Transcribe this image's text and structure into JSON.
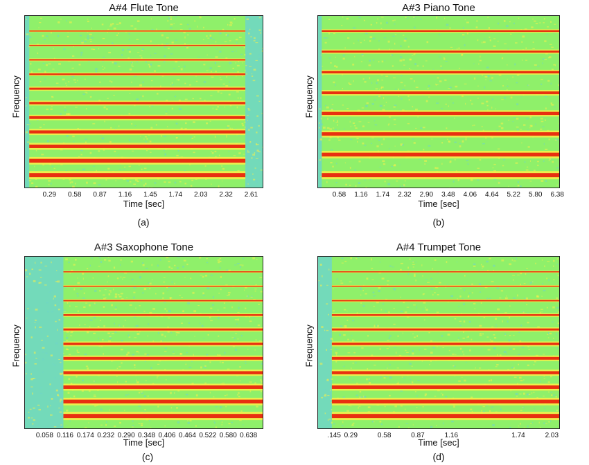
{
  "chart_data": [
    {
      "type": "heatmap",
      "title": "A#4 Flute Tone",
      "xlabel": "Time [sec]",
      "ylabel": "Frequency",
      "xticks": [
        "0.29",
        "0.58",
        "0.87",
        "1.16",
        "1.45",
        "1.74",
        "2.03",
        "2.32",
        "2.61"
      ],
      "xlim": [
        0,
        2.75
      ],
      "caption": "(a)",
      "harmonics": 11,
      "onset": 0.05,
      "offset": 2.55,
      "colors": {
        "background": "#8ff06a",
        "harmonic": "#e83010",
        "noise": "#f5f04a",
        "quiet": "#6fd6c8"
      }
    },
    {
      "type": "heatmap",
      "title": "A#3 Piano Tone",
      "xlabel": "Time [sec]",
      "ylabel": "Frequency",
      "xticks": [
        "0.58",
        "1.16",
        "1.74",
        "2.32",
        "2.90",
        "3.48",
        "4.06",
        "4.64",
        "5.22",
        "5.80",
        "6.38"
      ],
      "xlim": [
        0,
        6.45
      ],
      "caption": "(b)",
      "harmonics": 8,
      "onset": 0.1,
      "offset": 6.45,
      "colors": {
        "background": "#8ff06a",
        "harmonic": "#e83010",
        "noise": "#f5f04a",
        "quiet": "#6fd6c8"
      }
    },
    {
      "type": "heatmap",
      "title": "A#3 Saxophone Tone",
      "xlabel": "Time [sec]",
      "ylabel": "Frequency",
      "xticks": [
        "0.058",
        "0.116",
        "0.174",
        "0.232",
        "0.290",
        "0.348",
        "0.406",
        "0.464",
        "0.522",
        "0.580",
        "0.638"
      ],
      "xlim": [
        0,
        0.68
      ],
      "caption": "(c)",
      "harmonics": 11,
      "onset": 0.11,
      "offset": 0.68,
      "colors": {
        "background": "#8ff06a",
        "harmonic": "#e83010",
        "noise": "#f5f04a",
        "quiet": "#6fd6c8"
      }
    },
    {
      "type": "heatmap",
      "title": "A#4 Trumpet Tone",
      "xlabel": "Time [sec]",
      "ylabel": "Frequency",
      "xticks": [
        "0.29",
        "0.58",
        "0.87",
        "1.16",
        ".145",
        "1.74",
        "2.03"
      ],
      "xlim": [
        0,
        2.1
      ],
      "caption": "(d)",
      "harmonics": 11,
      "onset": 0.12,
      "offset": 2.1,
      "colors": {
        "background": "#8ff06a",
        "harmonic": "#e83010",
        "noise": "#f5f04a",
        "quiet": "#6fd6c8"
      }
    }
  ]
}
